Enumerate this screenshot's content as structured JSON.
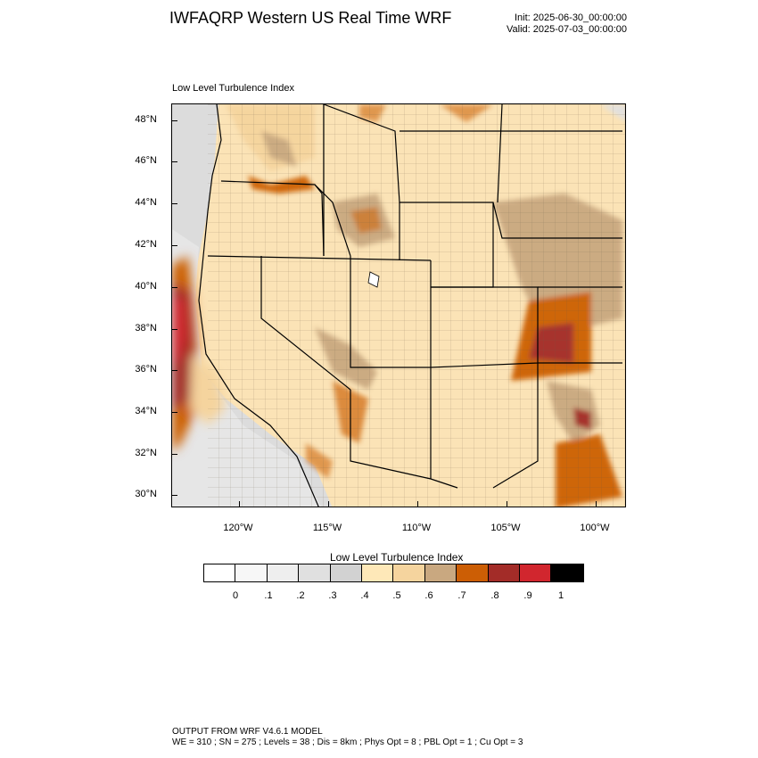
{
  "header": {
    "title": "IWFAQRP Western US Real Time WRF",
    "init": "Init: 2025-06-30_00:00:00",
    "valid": "Valid: 2025-07-03_00:00:00"
  },
  "panel": {
    "label": "Low Level Turbulence Index"
  },
  "map": {
    "lat_labels": [
      "48°N",
      "46°N",
      "44°N",
      "42°N",
      "40°N",
      "38°N",
      "36°N",
      "34°N",
      "32°N",
      "30°N"
    ],
    "lon_labels": [
      "120°W",
      "115°W",
      "110°W",
      "105°W",
      "100°W"
    ]
  },
  "colorbar": {
    "title": "Low Level Turbulence Index",
    "labels": [
      "0",
      ".1",
      ".2",
      ".3",
      ".4",
      ".5",
      ".6",
      ".7",
      ".8",
      ".9",
      "1"
    ],
    "colors": [
      "#ffffff",
      "#f7f7f7",
      "#eeeeee",
      "#e0e0e0",
      "#d2d2d2",
      "#fee8b8",
      "#f5d49e",
      "#c9a880",
      "#cc5e05",
      "#a32c28",
      "#d1262e",
      "#000000"
    ]
  },
  "footer": {
    "line1": "OUTPUT FROM WRF V4.6.1 MODEL",
    "line2": "WE = 310 ; SN = 275 ; Levels = 38 ; Dis = 8km ; Phys Opt = 8 ; PBL Opt = 1 ; Cu Opt = 3"
  }
}
